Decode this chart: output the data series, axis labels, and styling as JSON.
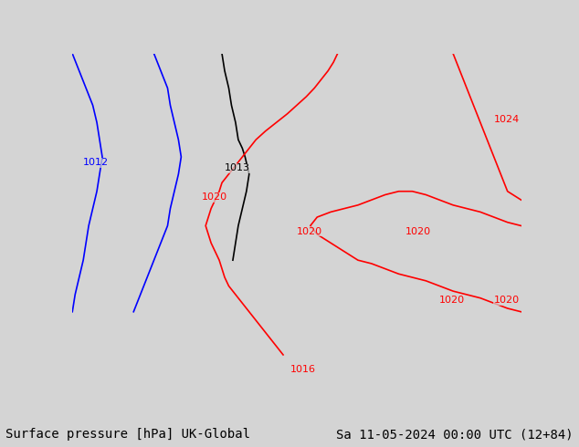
{
  "title_left": "Surface pressure [hPa] UK-Global",
  "title_right": "Sa 11-05-2024 00:00 UTC (12+84)",
  "bg_color": "#d4d4d4",
  "land_color": "#90EE90",
  "sea_color": "#d4d4d4",
  "border_color": "#808080",
  "font_size_title": 10,
  "lon_min": -18.0,
  "lon_max": 15.0,
  "lat_min": 42.0,
  "lat_max": 62.0,
  "isobars": [
    {
      "pressure": 1012,
      "color": "blue",
      "segments": [
        {
          "x": [
            -18.0,
            -17.5,
            -17.0,
            -16.5,
            -16.2,
            -16.0,
            -15.8,
            -16.0,
            -16.2,
            -16.5,
            -16.8,
            -17.0,
            -17.2,
            -17.5,
            -17.8,
            -18.0
          ],
          "y": [
            62.0,
            61.0,
            60.0,
            59.0,
            58.0,
            57.0,
            56.0,
            55.0,
            54.0,
            53.0,
            52.0,
            51.0,
            50.0,
            49.0,
            48.0,
            47.0
          ]
        }
      ]
    },
    {
      "pressure": 1012,
      "color": "blue",
      "segments": [
        {
          "x": [
            -12.0,
            -11.5,
            -11.0,
            -10.8,
            -10.5,
            -10.2,
            -10.0,
            -10.2,
            -10.5,
            -10.8,
            -11.0,
            -11.5,
            -12.0,
            -12.5,
            -13.0,
            -13.5
          ],
          "y": [
            62.0,
            61.0,
            60.0,
            59.0,
            58.0,
            57.0,
            56.0,
            55.0,
            54.0,
            53.0,
            52.0,
            51.0,
            50.0,
            49.0,
            48.0,
            47.0
          ]
        }
      ]
    },
    {
      "pressure": 1013,
      "color": "black",
      "segments": [
        {
          "x": [
            -7.0,
            -6.8,
            -6.5,
            -6.3,
            -6.0,
            -5.8,
            -5.5,
            -5.3,
            -5.0,
            -5.2,
            -5.5,
            -5.8,
            -6.0,
            -6.2
          ],
          "y": [
            62.0,
            61.0,
            60.0,
            59.0,
            58.0,
            57.0,
            56.5,
            56.0,
            55.0,
            54.0,
            53.0,
            52.0,
            51.0,
            50.0
          ]
        }
      ]
    },
    {
      "pressure": 1020,
      "color": "red",
      "segments": [
        {
          "x": [
            1.5,
            1.2,
            0.8,
            0.3,
            -0.2,
            -0.8,
            -1.5,
            -2.2,
            -3.0,
            -3.8,
            -4.5,
            -5.0,
            -5.5,
            -6.0,
            -6.5,
            -7.0,
            -7.2,
            -7.5,
            -7.8,
            -8.0,
            -8.2,
            -8.0,
            -7.8,
            -7.5,
            -7.2,
            -7.0,
            -6.8,
            -6.5,
            -6.0,
            -5.5,
            -5.0,
            -4.5,
            -4.0,
            -3.5,
            -3.0,
            -2.5
          ],
          "y": [
            62.0,
            61.5,
            61.0,
            60.5,
            60.0,
            59.5,
            59.0,
            58.5,
            58.0,
            57.5,
            57.0,
            56.5,
            56.0,
            55.5,
            55.0,
            54.5,
            54.0,
            53.5,
            53.0,
            52.5,
            52.0,
            51.5,
            51.0,
            50.5,
            50.0,
            49.5,
            49.0,
            48.5,
            48.0,
            47.5,
            47.0,
            46.5,
            46.0,
            45.5,
            45.0,
            44.5
          ]
        }
      ]
    },
    {
      "pressure": 1020,
      "color": "red",
      "segments": [
        {
          "x": [
            15.0,
            14.0,
            13.0,
            12.0,
            11.0,
            10.0,
            9.0,
            8.0,
            7.0,
            6.0,
            5.0,
            4.0,
            3.0,
            2.0,
            1.0,
            0.0,
            -0.5,
            0.0,
            1.0,
            2.0,
            3.0,
            4.0,
            5.0,
            6.0,
            7.0,
            8.0,
            9.0,
            10.0,
            11.0,
            12.0,
            13.0,
            14.0,
            15.0
          ],
          "y": [
            52.0,
            52.2,
            52.5,
            52.8,
            53.0,
            53.2,
            53.5,
            53.8,
            54.0,
            54.0,
            53.8,
            53.5,
            53.2,
            53.0,
            52.8,
            52.5,
            52.0,
            51.5,
            51.0,
            50.5,
            50.0,
            49.8,
            49.5,
            49.2,
            49.0,
            48.8,
            48.5,
            48.2,
            48.0,
            47.8,
            47.5,
            47.2,
            47.0
          ]
        }
      ]
    },
    {
      "pressure": 1024,
      "color": "red",
      "segments": [
        {
          "x": [
            10.0,
            10.5,
            11.0,
            11.5,
            12.0,
            12.5,
            13.0,
            13.5,
            14.0,
            15.0
          ],
          "y": [
            62.0,
            61.0,
            60.0,
            59.0,
            58.0,
            57.0,
            56.0,
            55.0,
            54.0,
            53.5
          ]
        }
      ]
    }
  ],
  "pressure_labels": [
    {
      "text": "1012",
      "lon": -17.2,
      "lat": 55.5,
      "color": "blue"
    },
    {
      "text": "1013",
      "lon": -6.8,
      "lat": 55.2,
      "color": "black"
    },
    {
      "text": "1020",
      "lon": -8.5,
      "lat": 53.5,
      "color": "red"
    },
    {
      "text": "1020",
      "lon": -1.5,
      "lat": 51.5,
      "color": "red"
    },
    {
      "text": "1020",
      "lon": 6.5,
      "lat": 51.5,
      "color": "red"
    },
    {
      "text": "1020",
      "lon": 9.0,
      "lat": 47.5,
      "color": "red"
    },
    {
      "text": "1020",
      "lon": 13.0,
      "lat": 47.5,
      "color": "red"
    },
    {
      "text": "1024",
      "lon": 13.0,
      "lat": 58.0,
      "color": "red"
    },
    {
      "text": "1016",
      "lon": -2.0,
      "lat": 43.5,
      "color": "red"
    }
  ]
}
